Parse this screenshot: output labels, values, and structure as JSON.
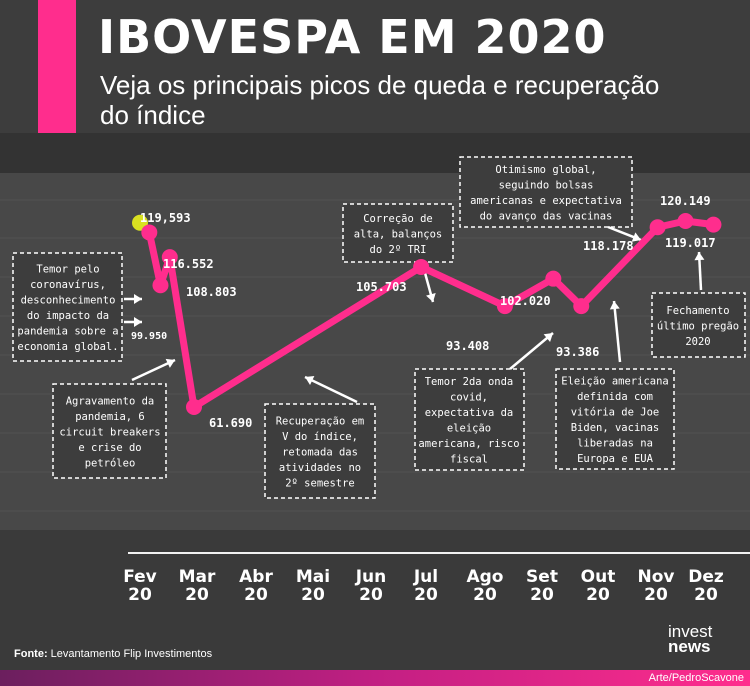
{
  "header": {
    "title": "IBOVESPA EM 2020",
    "subtitle": "Veja os principais picos de queda e recuperação do índice"
  },
  "footer": {
    "source_label": "Fonte:",
    "source_text": "Levantamento Flip Investimentos",
    "logo_line1": "invest",
    "logo_line2": "news",
    "credit": "Arte/PedroScavone"
  },
  "colors": {
    "accent": "#ff2d8d",
    "start_point": "#d9e021",
    "background": "#3d3d3d"
  },
  "chart_data": {
    "type": "line",
    "title": "IBOVESPA EM 2020",
    "x_ticks": [
      {
        "month": "Fev",
        "year": "20"
      },
      {
        "month": "Mar",
        "year": "20"
      },
      {
        "month": "Abr",
        "year": "20"
      },
      {
        "month": "Mai",
        "year": "20"
      },
      {
        "month": "Jun",
        "year": "20"
      },
      {
        "month": "Jul",
        "year": "20"
      },
      {
        "month": "Ago",
        "year": "20"
      },
      {
        "month": "Set",
        "year": "20"
      },
      {
        "month": "Out",
        "year": "20"
      },
      {
        "month": "Nov",
        "year": "20"
      },
      {
        "month": "Dez",
        "year": "20"
      }
    ],
    "points": [
      {
        "date": "2020-02-01",
        "value": 119593,
        "label": "119,593",
        "highlight": true
      },
      {
        "date": "2020-02-06",
        "value": 116552,
        "label": "116.552"
      },
      {
        "date": "2020-02-12",
        "value": 99950,
        "label": "99.950"
      },
      {
        "date": "2020-02-17",
        "value": 108803,
        "label": "108.803"
      },
      {
        "date": "2020-03-01",
        "value": 61690,
        "label": "61.690"
      },
      {
        "date": "2020-07-01",
        "value": 105703,
        "label": "105.703"
      },
      {
        "date": "2020-08-15",
        "value": 93408,
        "label": "93.408"
      },
      {
        "date": "2020-09-10",
        "value": 102020,
        "label": "102.020"
      },
      {
        "date": "2020-09-25",
        "value": 93386,
        "label": "93.386"
      },
      {
        "date": "2020-11-05",
        "value": 118178,
        "label": "118.178"
      },
      {
        "date": "2020-11-20",
        "value": 120149,
        "label": "120.149"
      },
      {
        "date": "2020-12-05",
        "value": 119017,
        "label": "119.017"
      }
    ],
    "annotations": [
      {
        "lines": [
          "Temor pelo",
          "coronavírus,",
          "desconhecimento",
          "do impacto da",
          "pandemia sobre a",
          "economia global."
        ]
      },
      {
        "lines": [
          "Agravamento da",
          "pandemia, 6",
          "circuit breakers",
          "e crise do",
          "petróleo"
        ]
      },
      {
        "lines": [
          "Recuperação em",
          "V do índice,",
          "retomada das",
          "atividades no",
          "2º semestre"
        ]
      },
      {
        "lines": [
          "Correção de",
          "alta, balanços",
          "do 2º TRI"
        ]
      },
      {
        "lines": [
          "Temor 2da onda",
          "covid,",
          "expectativa da",
          "eleição",
          "americana, risco",
          "fiscal"
        ]
      },
      {
        "lines": [
          "Otimismo global,",
          "seguindo bolsas",
          "americanas e expectativa",
          "do avanço das vacinas"
        ]
      },
      {
        "lines": [
          "Eleição americana",
          "definida com",
          "vitória de Joe",
          "Biden, vacinas",
          "liberadas na",
          "Europa e EUA"
        ]
      },
      {
        "lines": [
          "Fechamento",
          "último pregão",
          "2020"
        ]
      }
    ]
  }
}
